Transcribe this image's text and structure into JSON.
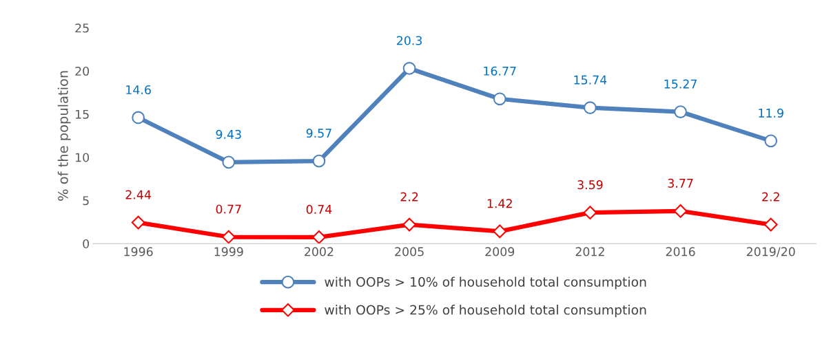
{
  "chart_data": {
    "type": "line",
    "ylabel": "% of the population",
    "categories": [
      "1996",
      "1999",
      "2002",
      "2005",
      "2009",
      "2012",
      "2016",
      "2019/20"
    ],
    "series": [
      {
        "name": "with OOPs > 10% of household total consumption",
        "color": "#4f81bd",
        "marker": "circle",
        "values": [
          14.6,
          9.43,
          9.57,
          20.3,
          16.77,
          15.74,
          15.27,
          11.9
        ]
      },
      {
        "name": "with OOPs > 25% of household total consumption",
        "color": "#ff0000",
        "marker": "diamond",
        "values": [
          2.44,
          0.77,
          0.74,
          2.2,
          1.42,
          3.59,
          3.77,
          2.2
        ]
      }
    ],
    "ylim": [
      0,
      25
    ],
    "yticks": [
      0,
      5,
      10,
      15,
      20,
      25
    ],
    "grid": false,
    "legend": "bottom",
    "data_labels": true,
    "line_style": "solid"
  }
}
